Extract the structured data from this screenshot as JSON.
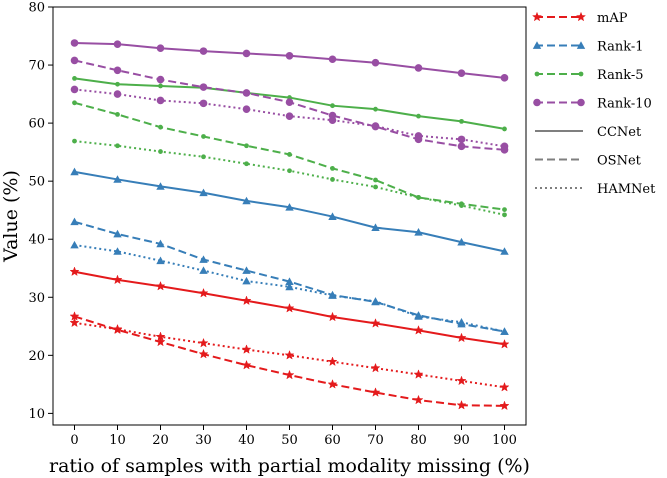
{
  "chart_data": {
    "type": "line",
    "title": "",
    "xlabel": "ratio of samples with partial modality missing (%)",
    "ylabel": "Value (%)",
    "x": [
      0,
      10,
      20,
      30,
      40,
      50,
      60,
      70,
      80,
      90,
      100
    ],
    "xlim": [
      -5,
      105
    ],
    "ylim": [
      8,
      80
    ],
    "xticks": [
      0,
      10,
      20,
      30,
      40,
      50,
      60,
      70,
      80,
      90,
      100
    ],
    "yticks": [
      10,
      20,
      30,
      40,
      50,
      60,
      70,
      80
    ],
    "grid": false,
    "legend_position": "outside-right-top",
    "metrics": [
      {
        "name": "mAP",
        "color": "#e41a1c",
        "marker": "star"
      },
      {
        "name": "Rank-1",
        "color": "#377eb8",
        "marker": "triangle"
      },
      {
        "name": "Rank-5",
        "color": "#4daf4a",
        "marker": "dot"
      },
      {
        "name": "Rank-10",
        "color": "#984ea3",
        "marker": "circle"
      }
    ],
    "methods": [
      {
        "name": "CCNet",
        "linestyle": "solid"
      },
      {
        "name": "OSNet",
        "linestyle": "dashed"
      },
      {
        "name": "HAMNet",
        "linestyle": "dotted"
      }
    ],
    "series": [
      {
        "metric": "mAP",
        "method": "CCNet",
        "values": [
          34.4,
          33.0,
          31.9,
          30.7,
          29.4,
          28.1,
          26.6,
          25.5,
          24.3,
          23.0,
          21.9
        ]
      },
      {
        "metric": "mAP",
        "method": "OSNet",
        "values": [
          26.7,
          24.4,
          22.3,
          20.2,
          18.3,
          16.6,
          15.0,
          13.6,
          12.3,
          11.4,
          11.3
        ]
      },
      {
        "metric": "mAP",
        "method": "HAMNet",
        "values": [
          25.6,
          24.5,
          23.2,
          22.1,
          21.0,
          20.0,
          18.9,
          17.8,
          16.7,
          15.6,
          14.5
        ]
      },
      {
        "metric": "Rank-1",
        "method": "CCNet",
        "values": [
          51.6,
          50.3,
          49.1,
          48.0,
          46.6,
          45.5,
          43.9,
          42.0,
          41.2,
          39.5,
          37.9
        ]
      },
      {
        "metric": "Rank-1",
        "method": "OSNet",
        "values": [
          43.0,
          40.9,
          39.2,
          36.5,
          34.6,
          32.7,
          30.4,
          29.2,
          26.9,
          25.4,
          24.1
        ]
      },
      {
        "metric": "Rank-1",
        "method": "HAMNet",
        "values": [
          39.0,
          37.9,
          36.3,
          34.6,
          32.8,
          31.8,
          30.3,
          29.3,
          26.7,
          25.7,
          24.1
        ]
      },
      {
        "metric": "Rank-5",
        "method": "CCNet",
        "values": [
          67.7,
          66.7,
          66.4,
          66.1,
          65.2,
          64.4,
          63.0,
          62.4,
          61.2,
          60.3,
          59.0
        ]
      },
      {
        "metric": "Rank-5",
        "method": "OSNet",
        "values": [
          63.5,
          61.5,
          59.3,
          57.7,
          56.1,
          54.6,
          52.2,
          50.2,
          47.2,
          46.1,
          45.1
        ]
      },
      {
        "metric": "Rank-5",
        "method": "HAMNet",
        "values": [
          56.9,
          56.1,
          55.1,
          54.2,
          53.0,
          51.8,
          50.3,
          49.0,
          47.2,
          45.8,
          44.2
        ]
      },
      {
        "metric": "Rank-10",
        "method": "CCNet",
        "values": [
          73.8,
          73.6,
          72.9,
          72.4,
          72.0,
          71.6,
          71.0,
          70.4,
          69.5,
          68.6,
          67.8
        ]
      },
      {
        "metric": "Rank-10",
        "method": "OSNet",
        "values": [
          70.8,
          69.1,
          67.5,
          66.2,
          65.2,
          63.6,
          61.3,
          59.4,
          57.2,
          56.0,
          55.4
        ]
      },
      {
        "metric": "Rank-10",
        "method": "HAMNet",
        "values": [
          65.8,
          65.0,
          63.9,
          63.4,
          62.4,
          61.2,
          60.5,
          59.5,
          57.8,
          57.2,
          56.0
        ]
      }
    ]
  }
}
